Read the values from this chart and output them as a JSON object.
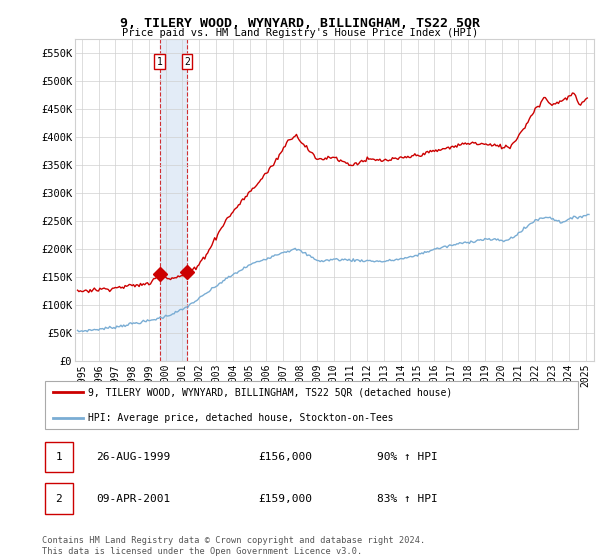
{
  "title": "9, TILERY WOOD, WYNYARD, BILLINGHAM, TS22 5QR",
  "subtitle": "Price paid vs. HM Land Registry's House Price Index (HPI)",
  "legend_label_red": "9, TILERY WOOD, WYNYARD, BILLINGHAM, TS22 5QR (detached house)",
  "legend_label_blue": "HPI: Average price, detached house, Stockton-on-Tees",
  "footnote": "Contains HM Land Registry data © Crown copyright and database right 2024.\nThis data is licensed under the Open Government Licence v3.0.",
  "red_color": "#cc0000",
  "blue_color": "#7aadd4",
  "sales": [
    {
      "date": 1999.65,
      "price": 156000,
      "label": "1"
    },
    {
      "date": 2001.27,
      "price": 159000,
      "label": "2"
    }
  ],
  "table_rows": [
    {
      "num": "1",
      "date": "26-AUG-1999",
      "price": "£156,000",
      "hpi": "90% ↑ HPI"
    },
    {
      "num": "2",
      "date": "09-APR-2001",
      "price": "£159,000",
      "hpi": "83% ↑ HPI"
    }
  ],
  "ylim": [
    0,
    575000
  ],
  "yticks": [
    0,
    50000,
    100000,
    150000,
    200000,
    250000,
    300000,
    350000,
    400000,
    450000,
    500000,
    550000
  ],
  "ytick_labels": [
    "£0",
    "£50K",
    "£100K",
    "£150K",
    "£200K",
    "£250K",
    "£300K",
    "£350K",
    "£400K",
    "£450K",
    "£500K",
    "£550K"
  ],
  "xlim_start": 1994.6,
  "xlim_end": 2025.5,
  "xtick_years": [
    1995,
    1996,
    1997,
    1998,
    1999,
    2000,
    2001,
    2002,
    2003,
    2004,
    2005,
    2006,
    2007,
    2008,
    2009,
    2010,
    2011,
    2012,
    2013,
    2014,
    2015,
    2016,
    2017,
    2018,
    2019,
    2020,
    2021,
    2022,
    2023,
    2024,
    2025
  ],
  "background_color": "#ffffff",
  "grid_color": "#d0d0d0"
}
